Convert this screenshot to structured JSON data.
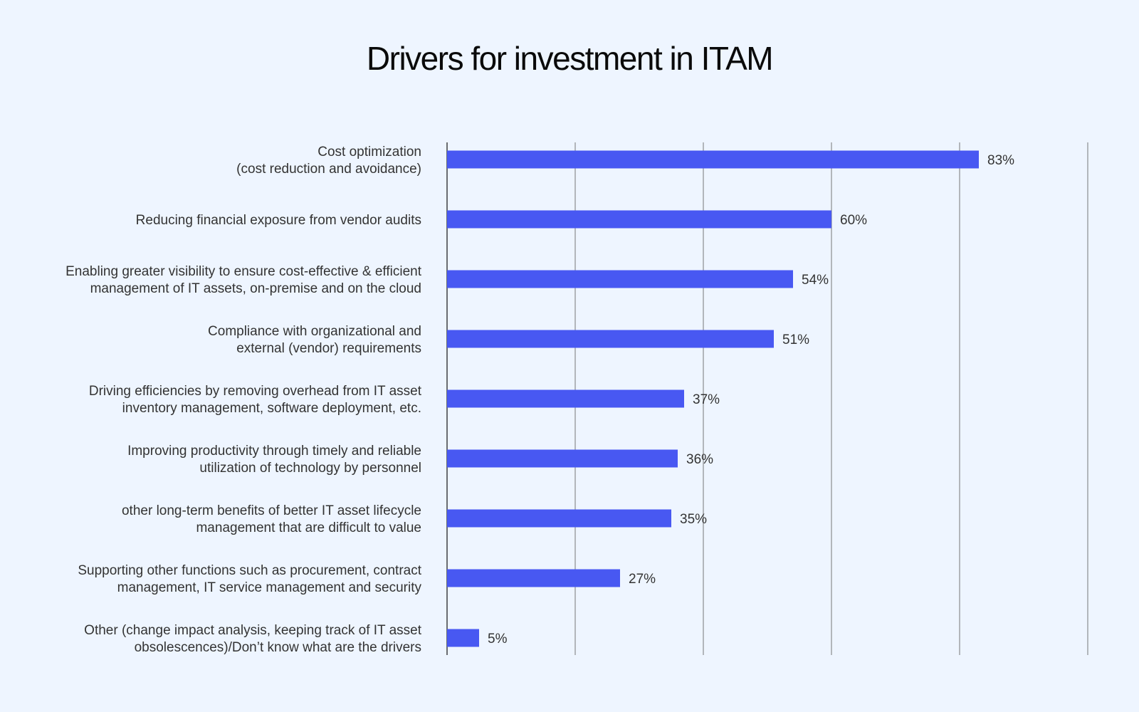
{
  "chart_data": {
    "type": "bar",
    "orientation": "horizontal",
    "title": "Drivers for investment in ITAM",
    "xlabel": "",
    "ylabel": "",
    "xlim": [
      0,
      100
    ],
    "grid": true,
    "value_suffix": "%",
    "bar_color": "#4858f2",
    "categories": [
      [
        "Cost optimization",
        "(cost reduction and avoidance)"
      ],
      [
        "Reducing financial exposure from vendor audits"
      ],
      [
        "Enabling greater visibility to ensure cost-effective & efficient",
        "management of IT assets, on-premise and on the cloud"
      ],
      [
        "Compliance with organizational and",
        "external (vendor) requirements"
      ],
      [
        "Driving efficiencies by removing overhead from IT asset",
        "inventory management, software deployment, etc."
      ],
      [
        "Improving productivity through timely and reliable",
        "utilization of technology by personnel"
      ],
      [
        "other long-term benefits of better IT asset lifecycle",
        "management that are difficult to value"
      ],
      [
        "Supporting other functions such as procurement, contract",
        "management, IT service management and security"
      ],
      [
        "Other (change impact analysis, keeping track of IT asset",
        "obsolescences)/Don’t know what are the drivers"
      ]
    ],
    "values": [
      83,
      60,
      54,
      51,
      37,
      36,
      35,
      27,
      5
    ]
  }
}
